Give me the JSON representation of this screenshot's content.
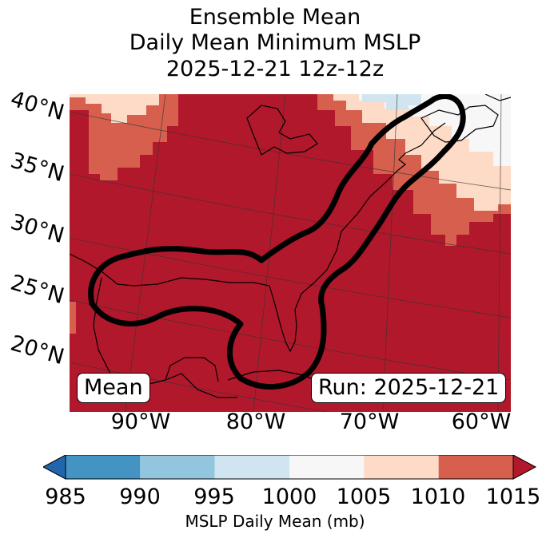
{
  "title": {
    "line1": "Ensemble Mean",
    "line2": "Daily Mean Minimum MSLP",
    "line3": "2025-12-21 12z-12z"
  },
  "map": {
    "lat_labels": [
      "40°N",
      "35°N",
      "30°N",
      "25°N",
      "20°N"
    ],
    "lon_labels": [
      "90°W",
      "80°W",
      "70°W",
      "60°W"
    ],
    "panel_label": "Mean",
    "run_label": "Run: 2025-12-21",
    "contour_description": "black outline",
    "fill_colors": {
      "dominant": "#b2182b",
      "band_1010": "#d6604d",
      "band_1005": "#fddbc7",
      "band_1000": "#f7f7f7",
      "band_995": "#d1e5f0"
    }
  },
  "colorbar": {
    "label": "MSLP Daily Mean (mb)",
    "ticks": [
      "985",
      "990",
      "995",
      "1000",
      "1005",
      "1010",
      "1015"
    ],
    "bins": [
      {
        "from": 985,
        "to": 990,
        "color": "#4393c3"
      },
      {
        "from": 990,
        "to": 995,
        "color": "#92c5de"
      },
      {
        "from": 995,
        "to": 1000,
        "color": "#d1e5f0"
      },
      {
        "from": 1000,
        "to": 1005,
        "color": "#f7f7f7"
      },
      {
        "from": 1005,
        "to": 1010,
        "color": "#fddbc7"
      },
      {
        "from": 1010,
        "to": 1015,
        "color": "#d6604d"
      }
    ],
    "under_color": "#2166ac",
    "over_color": "#b2182b"
  }
}
